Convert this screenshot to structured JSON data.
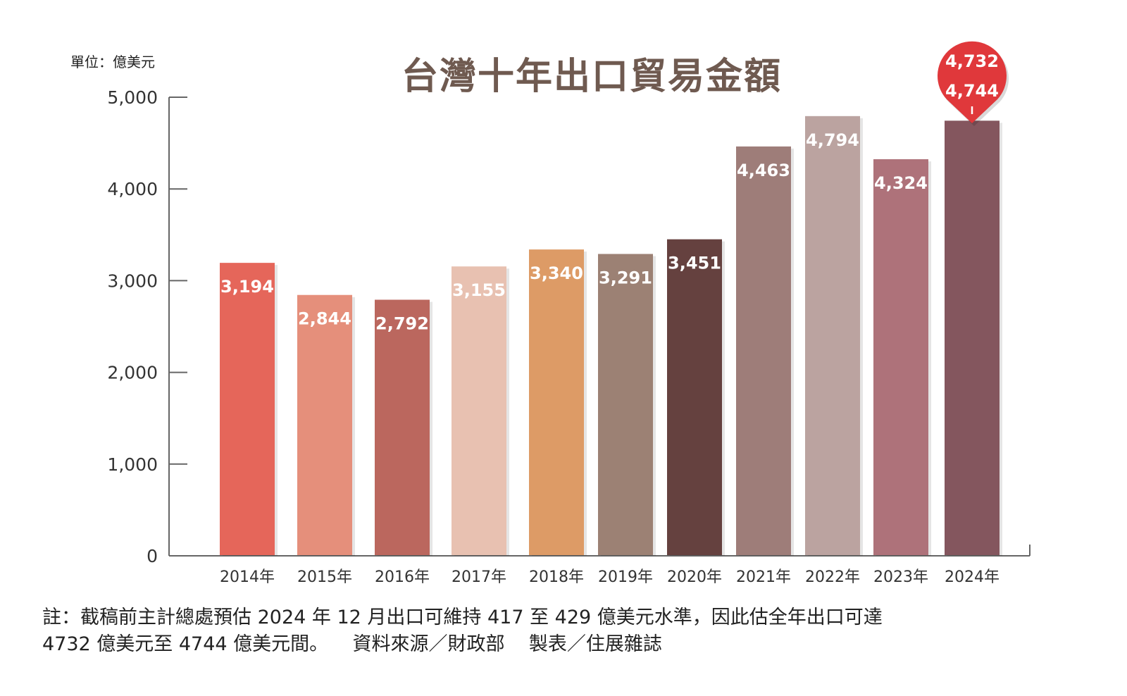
{
  "unit_label": "單位：億美元",
  "title": "台灣十年出口貿易金額",
  "note": {
    "line1": "註：截稿前主計總處預估 2024 年 12 月出口可維持 417 至 429 億美元水準，因此估全年出口可達",
    "line2": "4732 億美元至 4744 億美元間。",
    "source": "資料來源／財政部",
    "maker": "製表／住展雜誌"
  },
  "chart_data": {
    "type": "bar",
    "title": "台灣十年出口貿易金額",
    "ylabel": "單位：億美元",
    "ylim": [
      0,
      5000
    ],
    "yticks": [
      0,
      1000,
      2000,
      3000,
      4000,
      5000
    ],
    "ytick_labels": [
      "0",
      "1,000",
      "2,000",
      "3,000",
      "4,000",
      "5,000"
    ],
    "categories": [
      "2014年",
      "2015年",
      "2016年",
      "2017年",
      "2018年",
      "2019年",
      "2020年",
      "2021年",
      "2022年",
      "2023年",
      "2024年"
    ],
    "values": [
      3194,
      2844,
      2792,
      3155,
      3340,
      3291,
      3451,
      4463,
      4794,
      4324,
      4744
    ],
    "value_labels": [
      "3,194",
      "2,844",
      "2,792",
      "3,155",
      "3,340",
      "3,291",
      "3,451",
      "4,463",
      "4,794",
      "4,324",
      ""
    ],
    "colors": [
      "#e5665a",
      "#e58f7b",
      "#bb675e",
      "#e8c1b1",
      "#dd9b66",
      "#9c8174",
      "#65413f",
      "#9e7d79",
      "#bba3a0",
      "#ae727a",
      "#84565e"
    ],
    "callout": {
      "category": "2024年",
      "values": [
        "4,732",
        "4,744"
      ],
      "color": "#e0383b"
    },
    "grid": false,
    "legend": "none"
  }
}
